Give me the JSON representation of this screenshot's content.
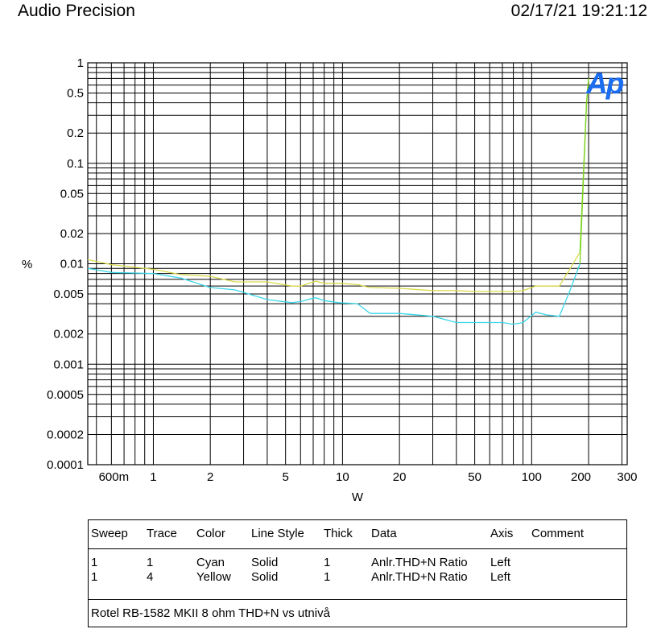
{
  "header": {
    "left": "Audio Precision",
    "right": "02/17/21 19:21:12"
  },
  "logo_text": "Ap",
  "colors": {
    "cyan_trace": "#3cd6e8",
    "yellow_trace": "#d9d94a",
    "green_trace": "#7ed321",
    "logo_blue": "#1a6cf0",
    "grid": "#000000"
  },
  "chart_data": {
    "type": "line",
    "xlabel": "W",
    "ylabel": "%",
    "x_scale": "log",
    "y_scale": "log",
    "xlim": [
      0.45,
      320
    ],
    "ylim": [
      0.0001,
      1
    ],
    "grid": true,
    "x_ticks": [
      {
        "v": 0.6,
        "label": "600m"
      },
      {
        "v": 1,
        "label": "1"
      },
      {
        "v": 2,
        "label": "2"
      },
      {
        "v": 5,
        "label": "5"
      },
      {
        "v": 10,
        "label": "10"
      },
      {
        "v": 20,
        "label": "20"
      },
      {
        "v": 50,
        "label": "50"
      },
      {
        "v": 100,
        "label": "100"
      },
      {
        "v": 200,
        "label": "200"
      },
      {
        "v": 300,
        "label": "300"
      }
    ],
    "y_ticks": [
      {
        "v": 1,
        "label": "1"
      },
      {
        "v": 0.5,
        "label": "0.5"
      },
      {
        "v": 0.2,
        "label": "0.2"
      },
      {
        "v": 0.1,
        "label": "0.1"
      },
      {
        "v": 0.05,
        "label": "0.05"
      },
      {
        "v": 0.02,
        "label": "0.02"
      },
      {
        "v": 0.01,
        "label": "0.01"
      },
      {
        "v": 0.005,
        "label": "0.005"
      },
      {
        "v": 0.002,
        "label": "0.002"
      },
      {
        "v": 0.001,
        "label": "0.001"
      },
      {
        "v": 0.0005,
        "label": "0.0005"
      },
      {
        "v": 0.0002,
        "label": "0.0002"
      },
      {
        "v": 0.0001,
        "label": "0.0001"
      }
    ],
    "series": [
      {
        "color": "cyan",
        "x": [
          0.45,
          0.6,
          1.0,
          1.4,
          2.0,
          2.7,
          4.0,
          5.4,
          6.0,
          7.2,
          8.0,
          9.5,
          12.0,
          14.0,
          20.0,
          30.0,
          40.0,
          50.0,
          60.0,
          70.0,
          80.0,
          90.0,
          105.0,
          120.0,
          140.0,
          160.0,
          180.0,
          195.0,
          200.0
        ],
        "y": [
          0.009,
          0.0082,
          0.008,
          0.0072,
          0.0058,
          0.0055,
          0.0044,
          0.0041,
          0.0042,
          0.0046,
          0.0043,
          0.0041,
          0.004,
          0.0032,
          0.0032,
          0.003,
          0.0026,
          0.0026,
          0.0026,
          0.0026,
          0.0025,
          0.0026,
          0.0033,
          0.0031,
          0.003,
          0.0055,
          0.01,
          0.4,
          0.7
        ]
      },
      {
        "color": "yellow",
        "x": [
          0.45,
          0.6,
          1.0,
          1.4,
          2.0,
          2.7,
          4.0,
          5.4,
          6.0,
          7.2,
          8.0,
          9.5,
          12.0,
          14.0,
          20.0,
          30.0,
          40.0,
          50.0,
          60.0,
          70.0,
          80.0,
          90.0,
          105.0,
          120.0,
          140.0,
          160.0,
          180.0,
          195.0,
          200.0
        ],
        "y": [
          0.011,
          0.0098,
          0.0088,
          0.0078,
          0.0075,
          0.0066,
          0.0066,
          0.006,
          0.006,
          0.0067,
          0.0064,
          0.0064,
          0.0062,
          0.0058,
          0.0057,
          0.0054,
          0.0054,
          0.0053,
          0.0053,
          0.0053,
          0.0053,
          0.0054,
          0.006,
          0.006,
          0.006,
          0.009,
          0.013,
          0.4,
          0.7
        ]
      }
    ]
  },
  "legend_table": {
    "headers": [
      "Sweep",
      "Trace",
      "Color",
      "Line Style",
      "Thick",
      "Data",
      "Axis",
      "Comment"
    ],
    "rows": [
      [
        "1",
        "1",
        "Cyan",
        "Solid",
        "1",
        "Anlr.THD+N Ratio",
        "Left",
        ""
      ],
      [
        "1",
        "4",
        "Yellow",
        "Solid",
        "1",
        "Anlr.THD+N Ratio",
        "Left",
        ""
      ]
    ],
    "comment": "Rotel RB-1582 MKII 8 ohm THD+N vs utnivå"
  }
}
